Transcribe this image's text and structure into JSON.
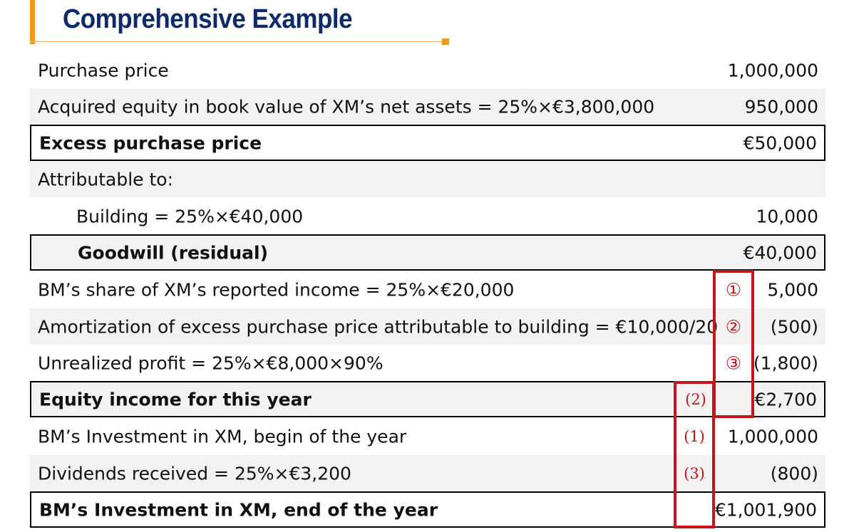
{
  "title": "Comprehensive Example",
  "rows": [
    {
      "label": "Purchase price",
      "value": "1,000,000"
    },
    {
      "label": "Acquired equity in book value of XM’s net assets = 25%×€3,800,000",
      "value": "950,000"
    },
    {
      "label": "Excess purchase price",
      "value": "€50,000"
    },
    {
      "label": "Attributable to:",
      "value": ""
    },
    {
      "label": "Building = 25%×€40,000",
      "value": "10,000"
    },
    {
      "label": "Goodwill (residual)",
      "value": "€40,000"
    },
    {
      "label": "BM’s share of XM’s reported income = 25%×€20,000",
      "value": "5,000",
      "marker": "①"
    },
    {
      "label": "Amortization of excess purchase price attributable to building = €10,000/20",
      "value": "(500)",
      "marker": "②"
    },
    {
      "label": "Unrealized profit = 25%×€8,000×90%",
      "value": "(1,800)",
      "marker": "③"
    },
    {
      "label": "Equity income for this year",
      "value": "€2,700",
      "marker": "(2)"
    },
    {
      "label": "BM’s Investment in XM, begin of the year",
      "value": "1,000,000",
      "marker": "(1)"
    },
    {
      "label": "Dividends received = 25%×€3,200",
      "value": "(800)",
      "marker": "(3)"
    },
    {
      "label": "BM’s Investment in XM, end of the year",
      "value": "€1,001,900"
    }
  ],
  "colors": {
    "title": "#0f2a6b",
    "accent": "#f39a1e",
    "marker": "#c0161c",
    "shade": "#f2f2f2"
  }
}
